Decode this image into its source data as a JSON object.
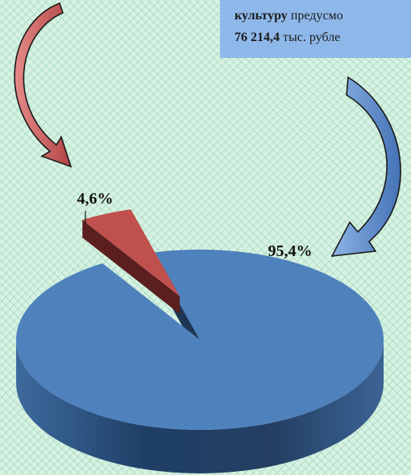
{
  "caption": {
    "line1_bold": "культуру",
    "line1_rest": "предусмо",
    "line2_bold": "76 214,4",
    "line2_rest": "тыс. рубле"
  },
  "chart_data": {
    "type": "pie",
    "title": "",
    "categories": [
      "",
      ""
    ],
    "values": [
      4.6,
      95.4
    ],
    "data_labels": [
      "4,6%",
      "95,4%"
    ],
    "colors": [
      "#c0504d",
      "#4f81bd"
    ],
    "style": "3d-exploded"
  },
  "colors": {
    "background": "#d6f2e2",
    "caption_box": "#8fb8ea",
    "red_arrow": "#c0504d",
    "blue_arrow": "#4f81bd"
  }
}
